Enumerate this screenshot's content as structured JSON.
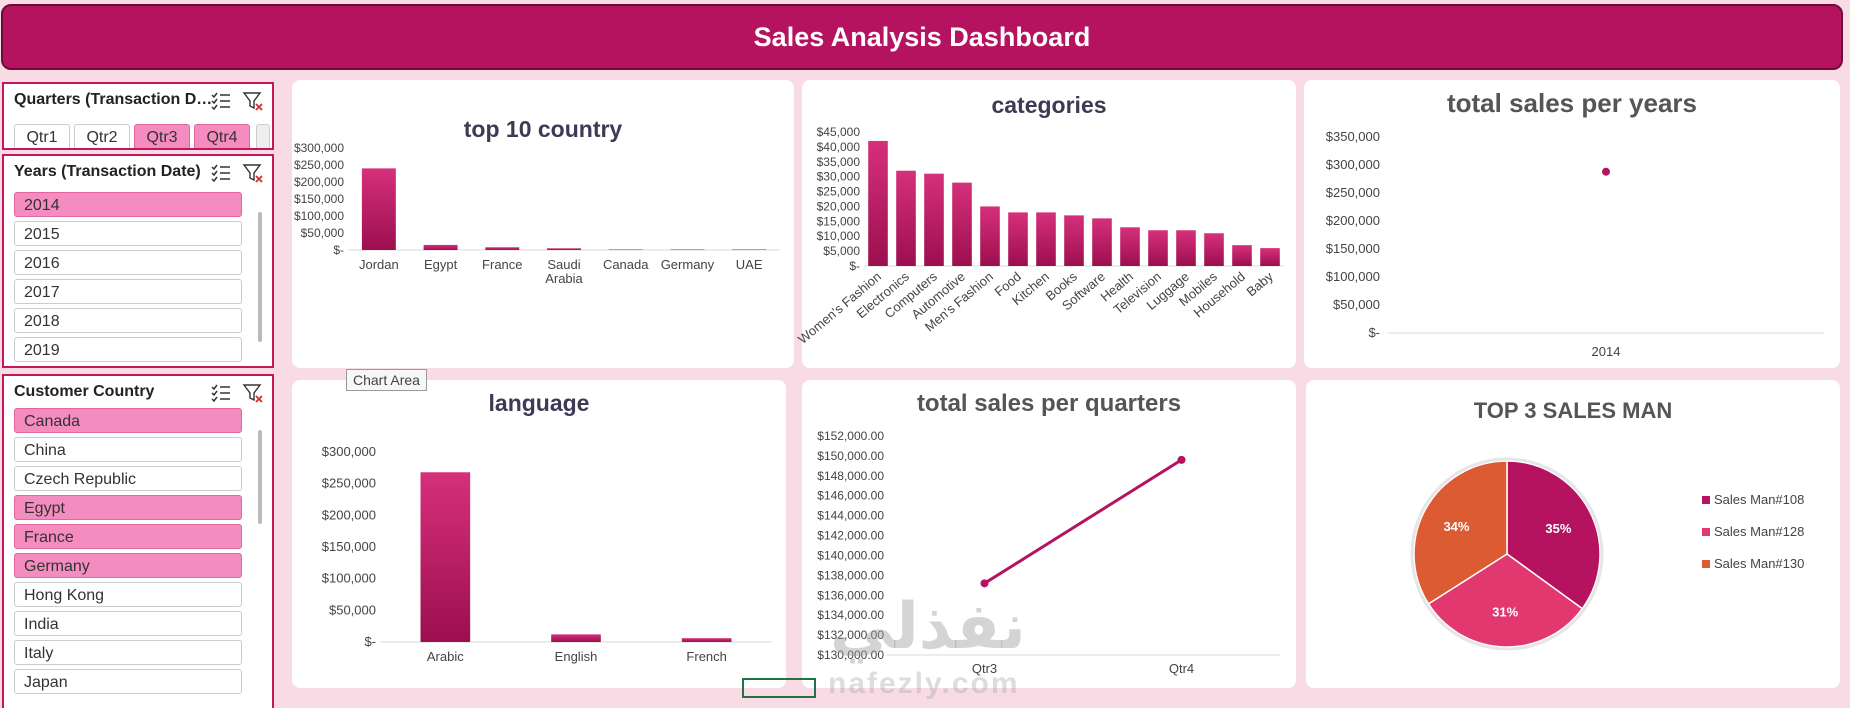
{
  "dashboard": {
    "title": "Sales Analysis Dashboard"
  },
  "slicers": {
    "quarters": {
      "title": "Quarters (Transaction Da...",
      "items": [
        {
          "label": "Qtr1",
          "selected": false
        },
        {
          "label": "Qtr2",
          "selected": false
        },
        {
          "label": "Qtr3",
          "selected": true
        },
        {
          "label": "Qtr4",
          "selected": true
        }
      ]
    },
    "years": {
      "title": "Years (Transaction Date)",
      "items": [
        {
          "label": "2014",
          "selected": true
        },
        {
          "label": "2015",
          "selected": false
        },
        {
          "label": "2016",
          "selected": false
        },
        {
          "label": "2017",
          "selected": false
        },
        {
          "label": "2018",
          "selected": false
        },
        {
          "label": "2019",
          "selected": false
        }
      ]
    },
    "country": {
      "title": "Customer Country",
      "items": [
        {
          "label": "Canada",
          "selected": true
        },
        {
          "label": "China",
          "selected": false
        },
        {
          "label": "Czech Republic",
          "selected": false
        },
        {
          "label": "Egypt",
          "selected": true
        },
        {
          "label": "France",
          "selected": true
        },
        {
          "label": "Germany",
          "selected": true
        },
        {
          "label": "Hong Kong",
          "selected": false
        },
        {
          "label": "India",
          "selected": false
        },
        {
          "label": "Italy",
          "selected": false
        },
        {
          "label": "Japan",
          "selected": false
        }
      ]
    }
  },
  "tooltip": "Chart Area",
  "watermark": {
    "arabic": "نفذلي",
    "latin": "nafezly.com"
  },
  "colors": {
    "accent": "#b5135f",
    "bar": "#c2185b",
    "pie": [
      "#b5135f",
      "#e0386f",
      "#dd5b33"
    ]
  },
  "chart_data": [
    {
      "id": "top10",
      "type": "bar",
      "title": "top 10 country",
      "categories": [
        "Jordan",
        "Egypt",
        "France",
        "Saudi Arabia",
        "Canada",
        "Germany",
        "UAE"
      ],
      "values": [
        240000,
        15000,
        8000,
        5000,
        1500,
        1500,
        1500
      ],
      "ylim": [
        0,
        300000
      ],
      "yticks": [
        "$-",
        "$50,000",
        "$100,000",
        "$150,000",
        "$200,000",
        "$250,000",
        "$300,000"
      ]
    },
    {
      "id": "categories",
      "type": "bar",
      "title": "categories",
      "categories": [
        "Women's Fashion",
        "Electronics",
        "Computers",
        "Automotive",
        "Men's Fashion",
        "Food",
        "Kitchen",
        "Books",
        "Software",
        "Health",
        "Television",
        "Luggage",
        "Mobiles",
        "Household",
        "Baby"
      ],
      "values": [
        42000,
        32000,
        31000,
        28000,
        20000,
        18000,
        18000,
        17000,
        16000,
        13000,
        12000,
        12000,
        11000,
        7000,
        6000
      ],
      "ylim": [
        0,
        45000
      ],
      "yticks": [
        "$-",
        "$5,000",
        "$10,000",
        "$15,000",
        "$20,000",
        "$25,000",
        "$30,000",
        "$35,000",
        "$40,000",
        "$45,000"
      ]
    },
    {
      "id": "years",
      "type": "scatter",
      "title": "total sales per years",
      "x": [
        "2014"
      ],
      "values": [
        288000
      ],
      "ylim": [
        0,
        350000
      ],
      "yticks": [
        "$-",
        "$50,000",
        "$100,000",
        "$150,000",
        "$200,000",
        "$250,000",
        "$300,000",
        "$350,000"
      ]
    },
    {
      "id": "language",
      "type": "bar",
      "title": "language",
      "categories": [
        "Arabic",
        "English",
        "French"
      ],
      "values": [
        268000,
        12000,
        6000
      ],
      "ylim": [
        0,
        300000
      ],
      "yticks": [
        "$-",
        "$50,000",
        "$100,000",
        "$150,000",
        "$200,000",
        "$250,000",
        "$300,000"
      ]
    },
    {
      "id": "quarters",
      "type": "line",
      "title": "total sales per quarters",
      "x": [
        "Qtr3",
        "Qtr4"
      ],
      "values": [
        137200,
        149600
      ],
      "ylim": [
        130000,
        152000
      ],
      "yticks": [
        "$130,000.00",
        "$132,000.00",
        "$134,000.00",
        "$136,000.00",
        "$138,000.00",
        "$140,000.00",
        "$142,000.00",
        "$144,000.00",
        "$146,000.00",
        "$148,000.00",
        "$150,000.00",
        "$152,000.00"
      ]
    },
    {
      "id": "salesman",
      "type": "pie",
      "title": "TOP 3 SALES MAN",
      "labels": [
        "Sales Man#108",
        "Sales Man#128",
        "Sales Man#130"
      ],
      "values": [
        35,
        31,
        34
      ],
      "display": [
        "35%",
        "31%",
        "34%"
      ],
      "legend": "right"
    }
  ]
}
